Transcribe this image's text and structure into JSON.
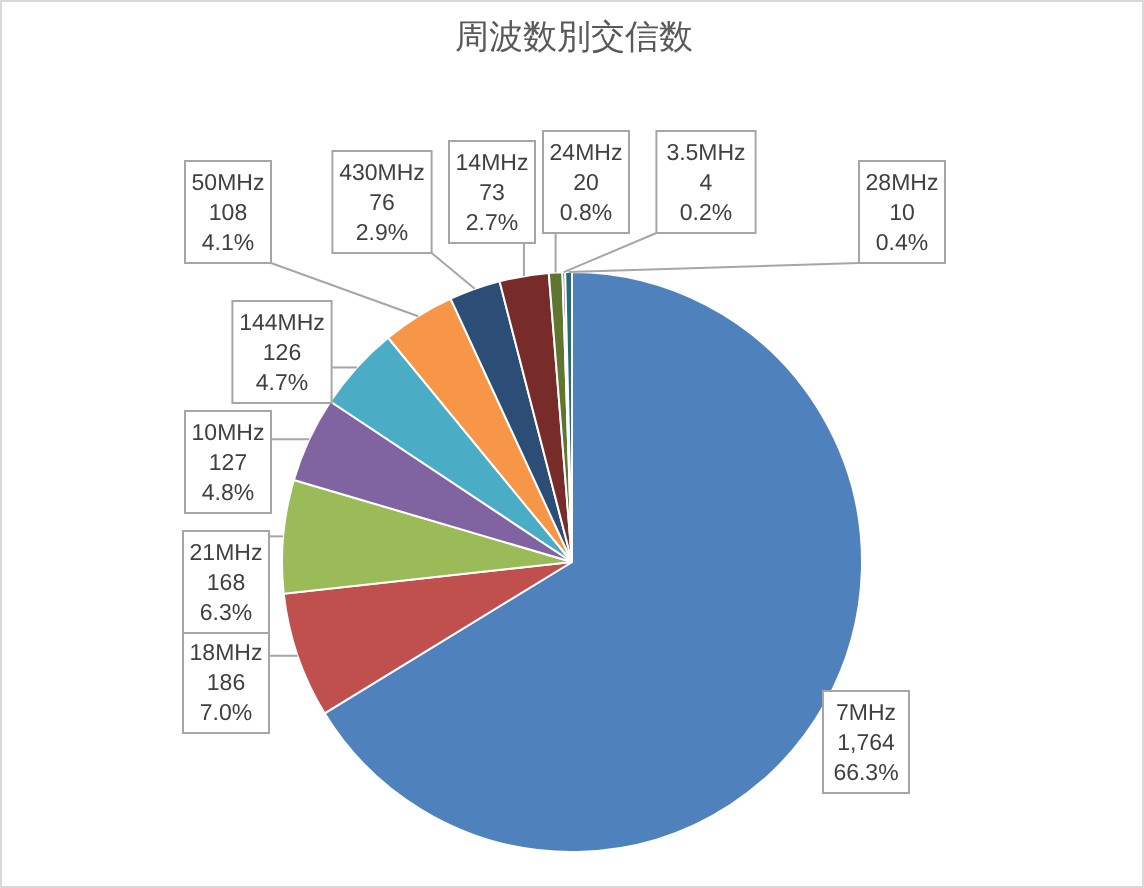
{
  "chart_data": {
    "type": "pie",
    "title": "周波数別交信数",
    "categories": [
      "7MHz",
      "18MHz",
      "21MHz",
      "10MHz",
      "144MHz",
      "50MHz",
      "430MHz",
      "14MHz",
      "24MHz",
      "3.5MHz",
      "28MHz"
    ],
    "values": [
      1764,
      186,
      168,
      127,
      126,
      108,
      76,
      73,
      20,
      4,
      10
    ],
    "value_labels": [
      "1,764\n66.3%",
      "186\n7.0%",
      "168\n6.3%",
      "127\n4.8%",
      "126\n4.7%",
      "108\n4.1%",
      "76\n2.9%",
      "73\n2.7%",
      "20\n0.8%",
      "4\n0.2%",
      "10\n0.4%"
    ],
    "colors": [
      "#4f81bd",
      "#c0504d",
      "#9bbb59",
      "#8064a2",
      "#4bacc6",
      "#f79646",
      "#2c4d75",
      "#772c2a",
      "#5f7530",
      "#4d3b62",
      "#276a7c"
    ],
    "legend": false
  }
}
